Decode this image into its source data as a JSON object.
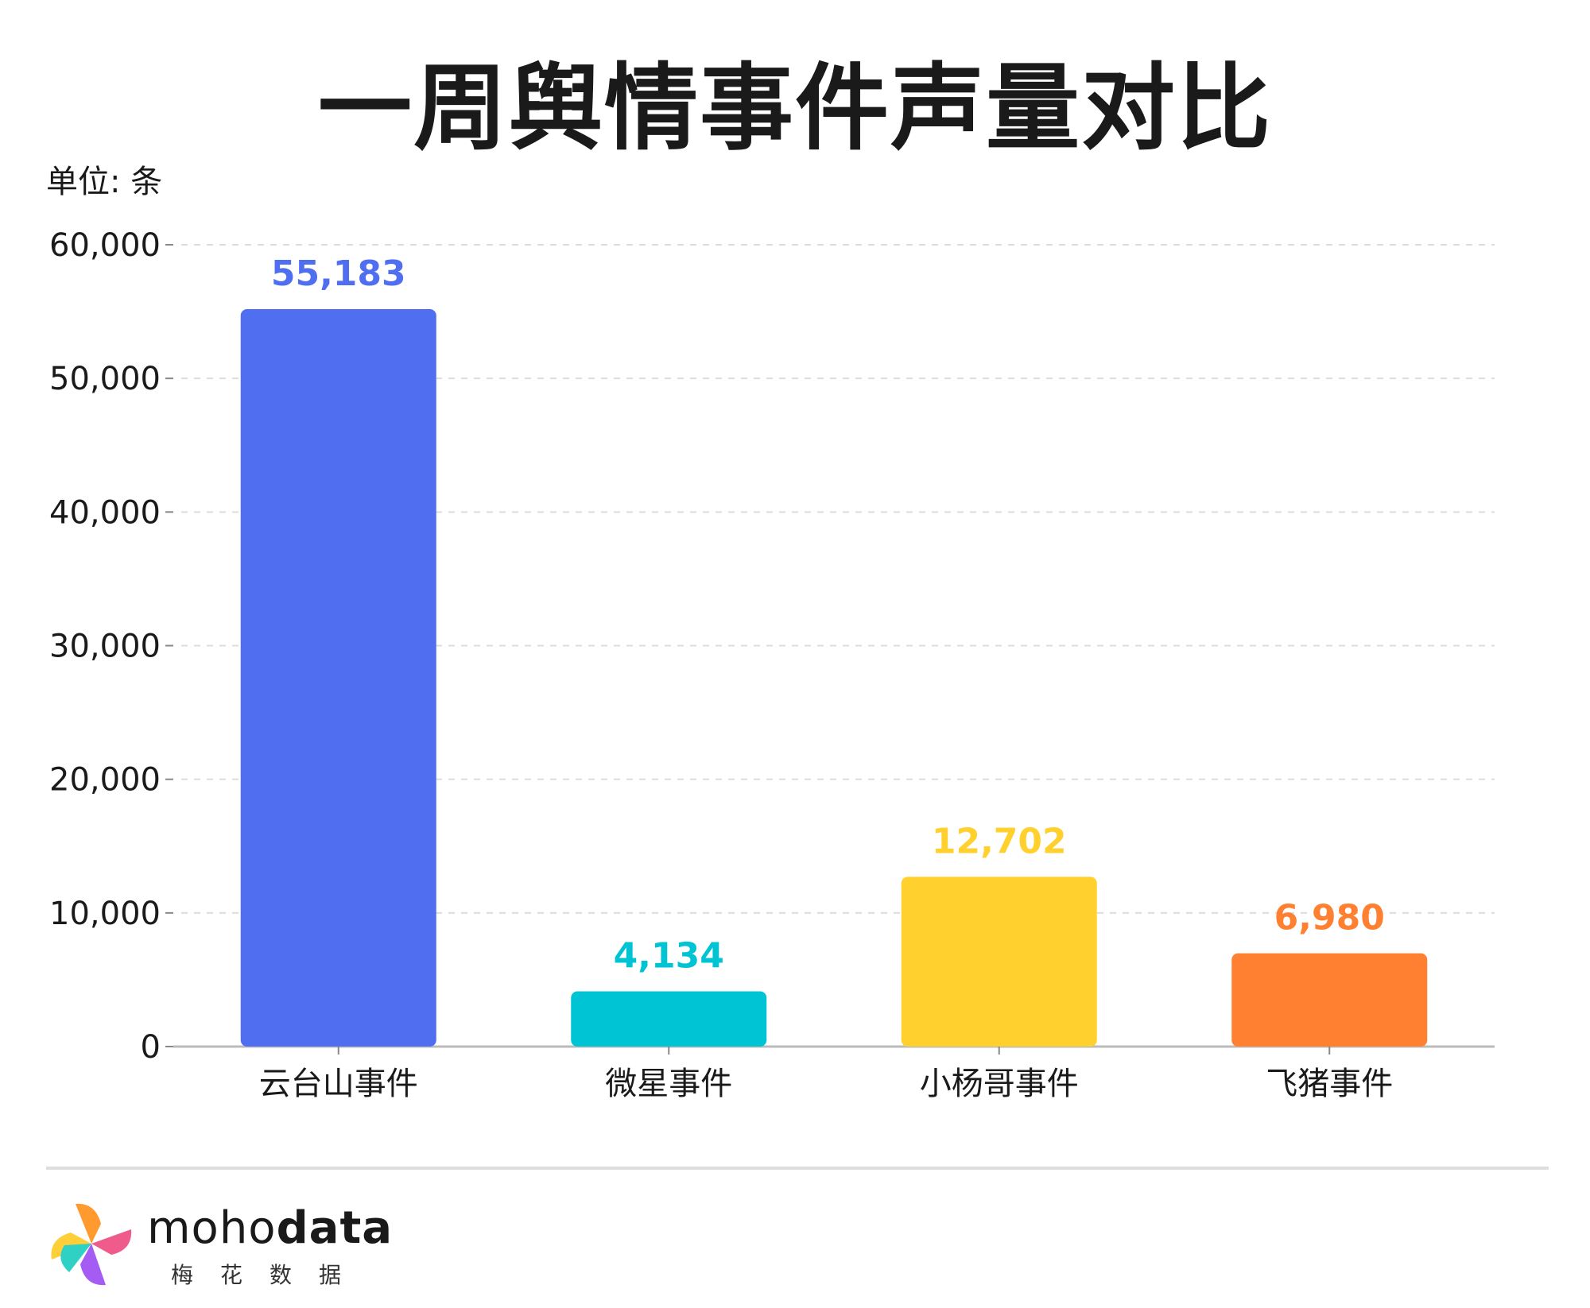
{
  "title": "一周舆情事件声量对比",
  "unit_label": "单位: 条",
  "chart_data": {
    "type": "bar",
    "title": "一周舆情事件声量对比",
    "ylabel": "单位: 条",
    "xlabel": "",
    "categories": [
      "云台山事件",
      "微星事件",
      "小杨哥事件",
      "飞猪事件"
    ],
    "values": [
      55183,
      4134,
      12702,
      6980
    ],
    "value_labels": [
      "55,183",
      "4,134",
      "12,702",
      "6,980"
    ],
    "colors": [
      "#4f6ff0",
      "#00c4d4",
      "#ffd02e",
      "#ff8030"
    ],
    "ylim": [
      0,
      60000
    ],
    "yticks": [
      0,
      10000,
      20000,
      30000,
      40000,
      50000,
      60000
    ],
    "ytick_labels": [
      "0",
      "10,000",
      "20,000",
      "30,000",
      "40,000",
      "50,000",
      "60,000"
    ],
    "grid": true,
    "legend": "none"
  },
  "logo": {
    "word_light": "moho",
    "word_bold": "data",
    "subtitle": "梅花数据"
  }
}
